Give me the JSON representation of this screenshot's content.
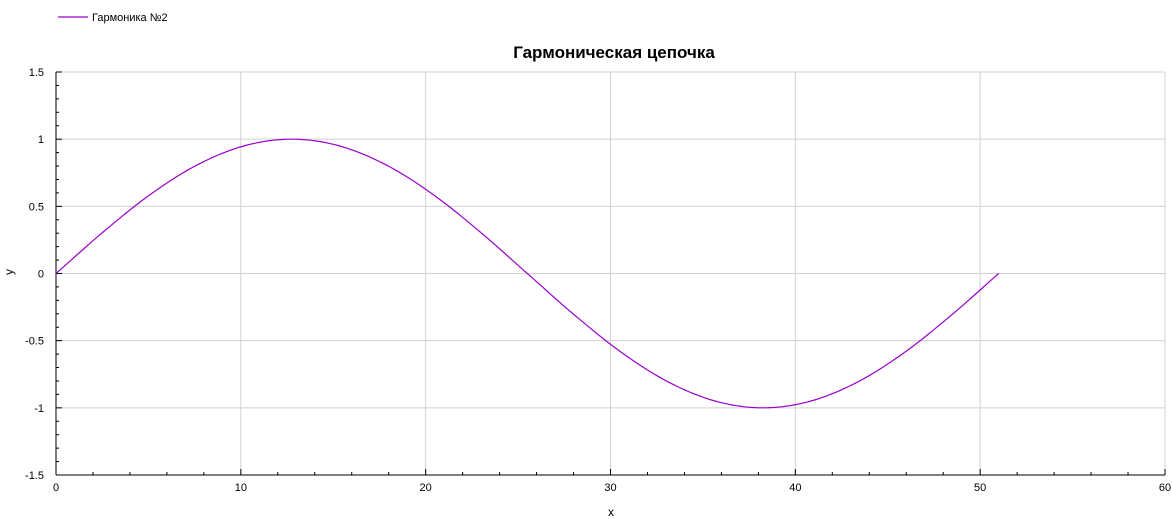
{
  "chart_data": {
    "type": "line",
    "title": "Гармоническая цепочка",
    "xlabel": "x",
    "ylabel": "y",
    "xlim": [
      0,
      60
    ],
    "ylim": [
      -1.5,
      1.5
    ],
    "x_ticks": [
      0,
      10,
      20,
      30,
      40,
      50,
      60
    ],
    "y_ticks": [
      1.5,
      1,
      0.5,
      0,
      -0.5,
      -1,
      -1.5
    ],
    "x_tick_labels": [
      "0",
      "10",
      "20",
      "30",
      "40",
      "50",
      "60"
    ],
    "y_tick_labels": [
      "1.5",
      "1",
      "0.5",
      "0",
      "-0.5",
      "-1",
      "-1.5"
    ],
    "grid": true,
    "legend_position": "top-left",
    "series": [
      {
        "name": "Гармоника №2",
        "color": "#9900cc",
        "x": [
          0,
          2.55,
          5.1,
          7.65,
          10.2,
          12.75,
          15.3,
          17.85,
          20.4,
          22.95,
          25.5,
          28.05,
          30.6,
          33.15,
          35.7,
          38.25,
          40.8,
          43.35,
          45.9,
          48.45,
          51
        ],
        "y": [
          0,
          0.309,
          0.588,
          0.809,
          0.951,
          1,
          0.951,
          0.809,
          0.588,
          0.309,
          0,
          -0.309,
          -0.588,
          -0.809,
          -0.951,
          -1,
          -0.951,
          -0.809,
          -0.588,
          -0.309,
          0
        ]
      }
    ]
  }
}
